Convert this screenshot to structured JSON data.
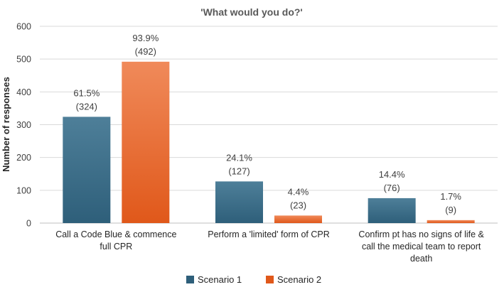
{
  "chart_data": {
    "type": "bar",
    "title": "'What would you do?'",
    "xlabel": "",
    "ylabel": "Number of responses",
    "ylim": [
      0,
      600
    ],
    "yticks": [
      0,
      100,
      200,
      300,
      400,
      500,
      600
    ],
    "grid": true,
    "legend_position": "bottom",
    "categories": [
      [
        "Call a Code Blue & commence",
        "full CPR"
      ],
      [
        "Perform a 'limited' form of CPR"
      ],
      [
        "Confirm pt has no signs of life &",
        "call the medical team to report",
        "death"
      ]
    ],
    "series": [
      {
        "name": "Scenario 1",
        "color": "#2e5f7a",
        "color_light": "#4e7f99",
        "values": [
          324,
          127,
          76
        ],
        "percent_labels": [
          "61.5%",
          "24.1%",
          "14.4%"
        ],
        "count_labels": [
          "(324)",
          "(127)",
          "(76)"
        ]
      },
      {
        "name": "Scenario 2",
        "color": "#e0581a",
        "color_light": "#f08a5a",
        "values": [
          492,
          23,
          9
        ],
        "percent_labels": [
          "93.9%",
          "4.4%",
          "1.7%"
        ],
        "count_labels": [
          "(492)",
          "(23)",
          "(9)"
        ]
      }
    ]
  }
}
